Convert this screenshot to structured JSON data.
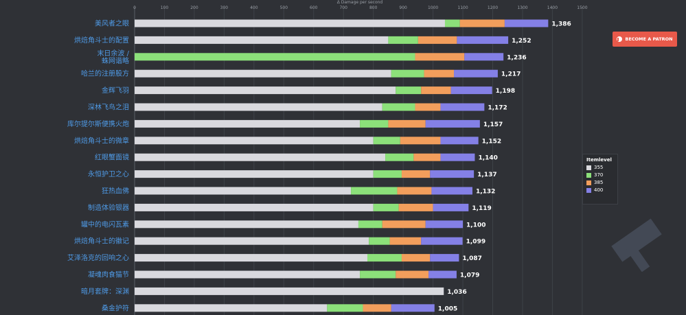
{
  "patron_button": {
    "label": "BECOME A PATRON"
  },
  "legend": {
    "title": "Itemlevel",
    "items": [
      {
        "name": "355",
        "color": "#d9d9de"
      },
      {
        "name": "370",
        "color": "#8ce07a"
      },
      {
        "name": "385",
        "color": "#f29e5c"
      },
      {
        "name": "400",
        "color": "#8480e6"
      }
    ]
  },
  "chart_data": {
    "type": "bar",
    "orientation": "horizontal",
    "stacked": true,
    "xlabel": "Δ Damage per second",
    "xlim": [
      0,
      1500
    ],
    "xticks": [
      0,
      100,
      200,
      300,
      400,
      500,
      600,
      700,
      800,
      900,
      1000,
      1100,
      1200,
      1300,
      1400,
      1500
    ],
    "grid": true,
    "legend_position": "right",
    "categories": [
      "美风者之眼",
      "烘焙角斗士的配置",
      "末日余波 / 蛛网谐略",
      "哈兰的注册股方",
      "金辉飞羽",
      "深林飞鸟之泪",
      "库尔提尔斯便携火炮",
      "烘焙角斗士的微章",
      "红眼蟹面镜",
      "永恒护卫之心",
      "狂热血佛",
      "制造体验银器",
      "罐中的电闪瓦素",
      "烘焙角斗士的徽记",
      "艾泽洛克的回响之心",
      "凝魂肉食猫节",
      "暗月套牌：深渊",
      "桑金护符"
    ],
    "totals": [
      1386,
      1252,
      1236,
      1217,
      1198,
      1172,
      1157,
      1152,
      1140,
      1137,
      1132,
      1119,
      1100,
      1099,
      1087,
      1079,
      1036,
      1005
    ],
    "series": [
      {
        "name": "355",
        "values": [
          1040,
          850,
          0,
          860,
          875,
          830,
          755,
          800,
          840,
          800,
          725,
          800,
          750,
          785,
          780,
          755,
          1036,
          645
        ]
      },
      {
        "name": "370",
        "values": [
          50,
          100,
          940,
          110,
          85,
          110,
          95,
          90,
          95,
          95,
          155,
          85,
          80,
          70,
          115,
          120,
          0,
          120
        ]
      },
      {
        "name": "385",
        "values": [
          150,
          130,
          165,
          100,
          100,
          85,
          125,
          135,
          90,
          95,
          115,
          115,
          145,
          105,
          95,
          110,
          0,
          95
        ]
      },
      {
        "name": "400",
        "values": [
          146,
          172,
          131,
          147,
          138,
          147,
          182,
          127,
          115,
          147,
          137,
          119,
          125,
          139,
          97,
          94,
          0,
          145
        ]
      }
    ]
  }
}
